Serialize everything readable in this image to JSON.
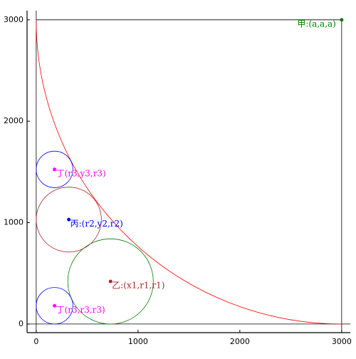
{
  "chart_data": {
    "type": "geometry",
    "xlim": [
      -90,
      3085
    ],
    "ylim": [
      -85,
      3090
    ],
    "xticks": [
      0,
      1000,
      2000,
      3000
    ],
    "yticks": [
      0,
      1000,
      2000,
      3000
    ],
    "arc": {
      "cx": 3000,
      "cy": 3000,
      "r": 3000,
      "color": "#ff0000"
    },
    "circles": [
      {
        "x": 730,
        "y": 420,
        "r": 420,
        "color": "#008000"
      },
      {
        "x": 320,
        "y": 1030,
        "r": 320,
        "color": "#a52a2a"
      },
      {
        "x": 180,
        "y": 180,
        "r": 180,
        "color": "#0000ff"
      },
      {
        "x": 180,
        "y": 1525,
        "r": 180,
        "color": "#0000ff"
      }
    ],
    "points": [
      {
        "label": "甲:(a,a,a)",
        "x": 3000,
        "y": 3000,
        "color": "#008000"
      },
      {
        "label": "乙:(x1,r1,r1)",
        "x": 730,
        "y": 420,
        "color": "#a52a2a"
      },
      {
        "label": "丙:(r2,y2,r2)",
        "x": 320,
        "y": 1030,
        "color": "#0000ff"
      },
      {
        "label": "丁(r3,y3,r3)",
        "x": 180,
        "y": 1525,
        "color": "#ff00ff"
      },
      {
        "label": "丁(r3,r3,r3)",
        "x": 180,
        "y": 180,
        "color": "#ff00ff"
      }
    ]
  }
}
